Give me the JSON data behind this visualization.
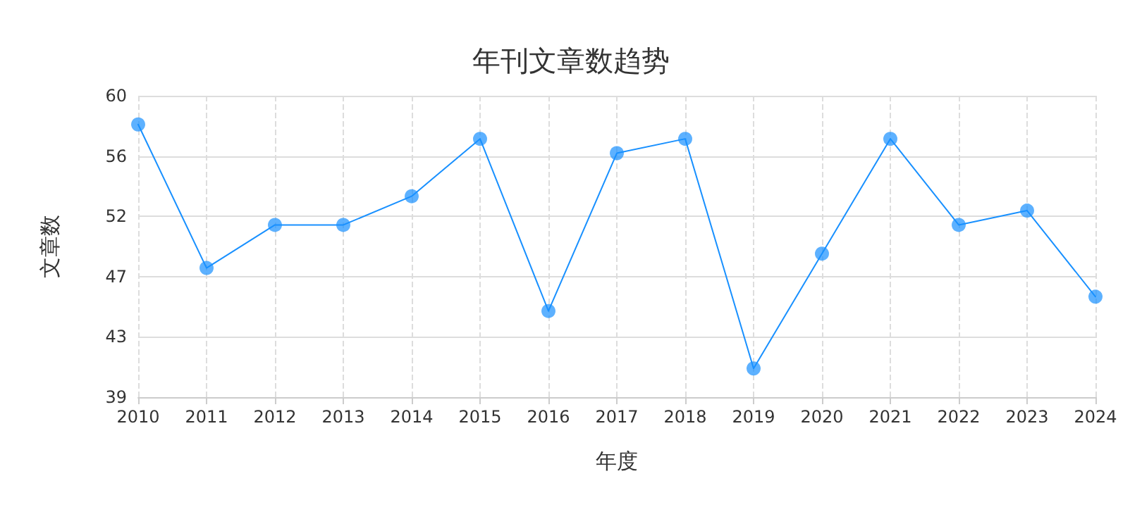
{
  "chart_data": {
    "type": "line",
    "title": "年刊文章数趋势",
    "xlabel": "年度",
    "ylabel": "文章数",
    "categories": [
      "2010",
      "2011",
      "2012",
      "2013",
      "2014",
      "2015",
      "2016",
      "2017",
      "2018",
      "2019",
      "2020",
      "2021",
      "2022",
      "2023",
      "2024"
    ],
    "series": [
      {
        "color": "#1890ff",
        "values": [
          58,
          48,
          51,
          51,
          53,
          57,
          45,
          56,
          57,
          41,
          49,
          57,
          51,
          52,
          46
        ]
      }
    ],
    "ylim": [
      39,
      60
    ],
    "yticks": [
      {
        "value": 39,
        "label": "39"
      },
      {
        "value": 43.2,
        "label": "43"
      },
      {
        "value": 47.4,
        "label": "47"
      },
      {
        "value": 51.6,
        "label": "52"
      },
      {
        "value": 55.8,
        "label": "56"
      },
      {
        "value": 60,
        "label": "60"
      }
    ],
    "grid": true,
    "marker": "circle",
    "line_style": "solid"
  }
}
